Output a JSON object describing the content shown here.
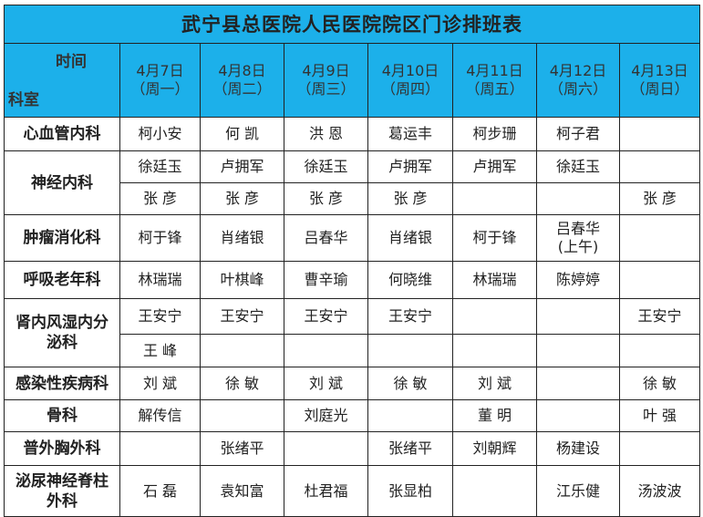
{
  "title": "武宁县总医院人民医院院区门诊排班表",
  "corner": {
    "time": "时间",
    "dept": "科室"
  },
  "days": [
    {
      "date": "4月7日",
      "weekday": "（周一）"
    },
    {
      "date": "4月8日",
      "weekday": "（周二）"
    },
    {
      "date": "4月9日",
      "weekday": "（周三）"
    },
    {
      "date": "4月10日",
      "weekday": "（周四）"
    },
    {
      "date": "4月11日",
      "weekday": "（周五）"
    },
    {
      "date": "4月12日",
      "weekday": "（周六）"
    },
    {
      "date": "4月13日",
      "weekday": "（周日）"
    }
  ],
  "rows": [
    {
      "dept": "心血管内科",
      "lines": [
        [
          "柯小安",
          "何 凯",
          "洪 恩",
          "葛运丰",
          "柯步珊",
          "柯子君",
          ""
        ]
      ]
    },
    {
      "dept": "神经内科",
      "lines": [
        [
          "徐廷玉",
          "卢拥军",
          "徐廷玉",
          "卢拥军",
          "卢拥军",
          "徐廷玉",
          ""
        ],
        [
          "张 彦",
          "张 彦",
          "张 彦",
          "张 彦",
          "",
          "",
          "张 彦"
        ]
      ]
    },
    {
      "dept": "肿瘤消化科",
      "lines": [
        [
          "柯于锋",
          "肖绪银",
          "吕春华",
          "肖绪银",
          "柯于锋",
          "吕春华\n(上午)",
          ""
        ]
      ]
    },
    {
      "dept": "呼吸老年科",
      "lines": [
        [
          "林瑞瑞",
          "叶棋峰",
          "曹辛瑜",
          "何晓维",
          "林瑞瑞",
          "陈婷婷",
          ""
        ]
      ]
    },
    {
      "dept": "肾内风湿内分泌科",
      "lines": [
        [
          "王安宁",
          "王安宁",
          "王安宁",
          "王安宁",
          "",
          "",
          "王安宁"
        ],
        [
          "王 峰",
          "",
          "",
          "",
          "",
          "",
          ""
        ]
      ]
    },
    {
      "dept": "感染性疾病科",
      "lines": [
        [
          "刘 斌",
          "徐 敏",
          "刘 斌",
          "徐 敏",
          "刘 斌",
          "",
          "徐 敏"
        ]
      ]
    },
    {
      "dept": "骨科",
      "lines": [
        [
          "解传信",
          "",
          "刘庭光",
          "",
          "董 明",
          "",
          "叶 强"
        ]
      ]
    },
    {
      "dept": "普外胸外科",
      "lines": [
        [
          "",
          "张绪平",
          "",
          "张绪平",
          "刘朝辉",
          "杨建设",
          ""
        ]
      ]
    },
    {
      "dept": "泌尿神经脊柱外科",
      "lines": [
        [
          "石 磊",
          "袁知富",
          "杜君福",
          "张显柏",
          "",
          "江乐健",
          "汤波波"
        ]
      ]
    }
  ]
}
